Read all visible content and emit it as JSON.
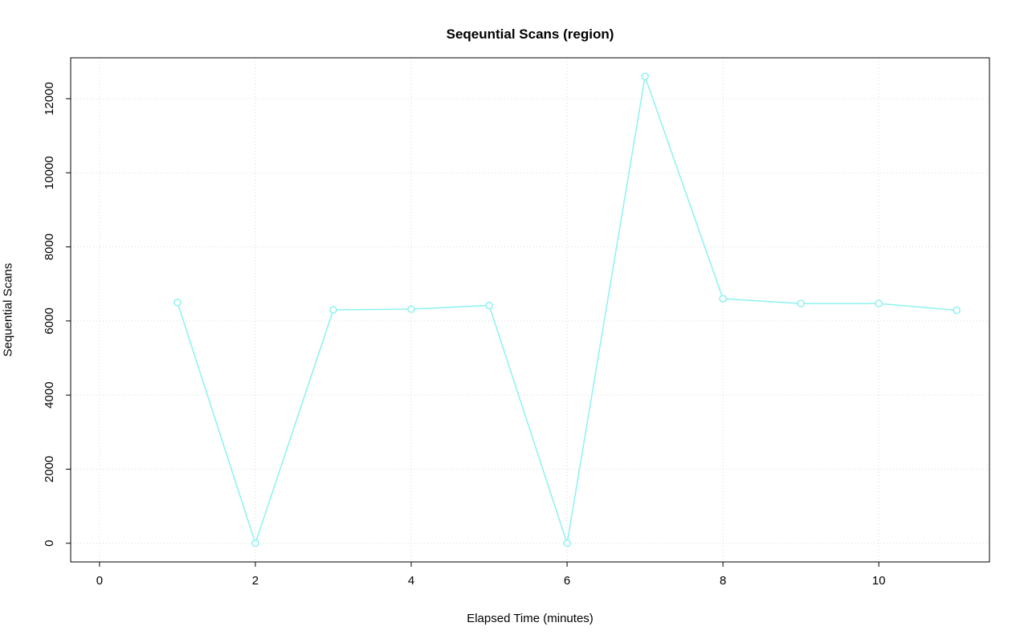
{
  "chart_data": {
    "type": "line",
    "title": "Seqeuntial Scans (region)",
    "xlabel": "Elapsed Time (minutes)",
    "ylabel": "Sequential Scans",
    "x": [
      1,
      2,
      3,
      4,
      5,
      6,
      7,
      8,
      9,
      10,
      11
    ],
    "values": [
      6500,
      0,
      6300,
      6320,
      6420,
      0,
      12600,
      6600,
      6470,
      6470,
      6290
    ],
    "xlim": [
      -0.37,
      11.42
    ],
    "ylim": [
      -504,
      13104
    ],
    "x_ticks": [
      0,
      2,
      4,
      6,
      8,
      10
    ],
    "y_ticks": [
      0,
      2000,
      4000,
      6000,
      8000,
      10000,
      12000
    ],
    "grid": true,
    "legend": "none",
    "line_color": "#8df2f0",
    "point_style": "open-circle",
    "grid_color": "#d9d9d9",
    "axis_color": "#000000",
    "background": "#ffffff"
  }
}
